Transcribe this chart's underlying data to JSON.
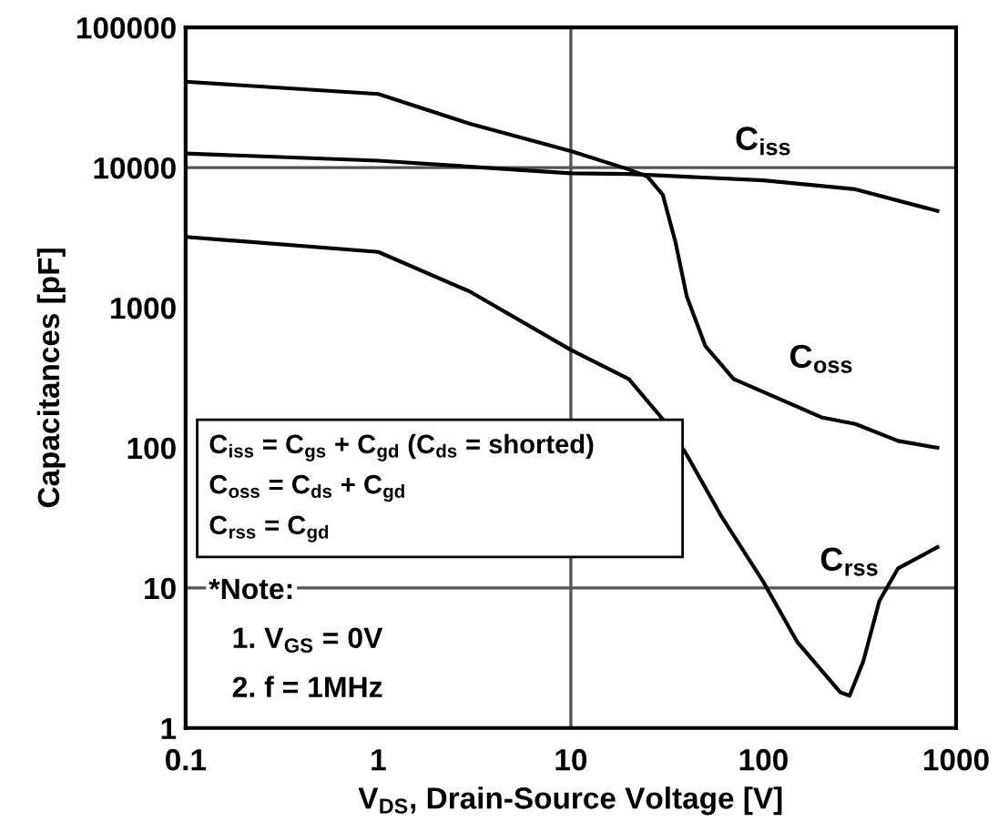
{
  "chart_data": {
    "type": "line",
    "xlabel": "V$_{DS}$, Drain-Source Voltage [V]",
    "ylabel": "Capacitances [pF]",
    "log": "xy",
    "grid": false,
    "marker": "none",
    "line_style": "solid",
    "xlim": [
      0.1,
      1000
    ],
    "xticks": [
      {
        "value": 0.1,
        "label": "0.1"
      },
      1,
      10,
      100,
      1000
    ],
    "ylim": [
      1,
      100000
    ],
    "yticks": [
      1,
      10,
      100,
      1000,
      10000,
      100000
    ],
    "ref_lines": [
      {
        "axis": "x",
        "value": 10,
        "color": "#555555"
      },
      {
        "axis": "y",
        "value": 10000,
        "color": "#555555"
      },
      {
        "axis": "y",
        "value": 10,
        "color": "#555555"
      }
    ],
    "series": [
      {
        "name": "C$_{iss}$",
        "color": "#000000",
        "x": [
          0.1,
          1,
          10,
          20,
          100,
          300,
          800
        ],
        "values": [
          12600,
          11200,
          9100,
          9000,
          8100,
          7000,
          4900
        ]
      },
      {
        "name": "C$_{oss}$",
        "color": "#000000",
        "x": [
          0.1,
          1,
          3,
          10,
          20,
          25,
          30,
          35,
          40,
          50,
          70,
          100,
          200,
          300,
          500,
          800
        ],
        "values": [
          41000,
          33500,
          20500,
          13100,
          9700,
          8600,
          6400,
          2900,
          1200,
          530,
          310,
          250,
          165,
          148,
          112,
          100
        ]
      },
      {
        "name": "C$_{rss}$",
        "color": "#000000",
        "x": [
          0.1,
          1,
          3,
          10,
          20,
          30,
          40,
          60,
          100,
          150,
          250,
          280,
          330,
          400,
          500,
          800
        ],
        "values": [
          3200,
          2500,
          1300,
          500,
          310,
          160,
          89,
          33,
          11,
          4.1,
          1.8,
          1.7,
          3.0,
          8.1,
          13.8,
          19.5
        ]
      }
    ],
    "annotations": [
      "C$_{iss}$ = C$_{gs}$ + C$_{gd}$ (C$_{ds}$ = shorted)",
      "C$_{oss}$ = C$_{ds}$ + C$_{gd}$",
      "C$_{rss}$ = C$_{gd}$",
      "*Note:",
      "1. V$_{GS}$ = 0V",
      "2. f = 1MHz"
    ]
  }
}
